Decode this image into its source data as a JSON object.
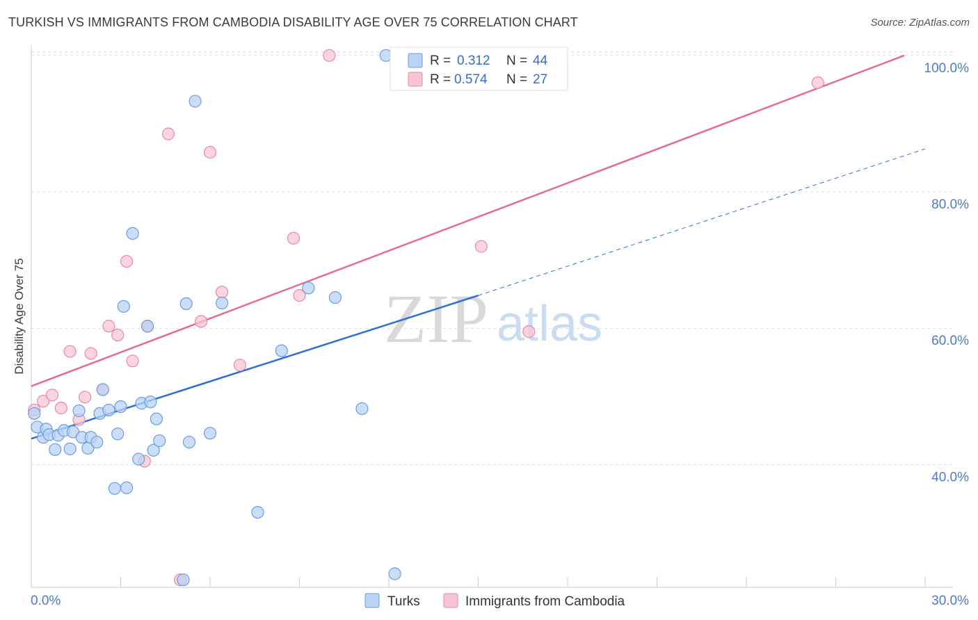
{
  "header": {
    "title": "TURKISH VS IMMIGRANTS FROM CAMBODIA DISABILITY AGE OVER 75 CORRELATION CHART",
    "source": "Source: ZipAtlas.com"
  },
  "watermark": {
    "zip": "ZIP",
    "atlas": "atlas"
  },
  "legend": {
    "r_label": "R =",
    "n_label": "N =",
    "rows": [
      {
        "r": "0.312",
        "n": "44"
      },
      {
        "r": "0.574",
        "n": "27"
      }
    ]
  },
  "colors": {
    "turks_fill": "#b8d3f4",
    "turks_stroke": "#6c9be0",
    "turks_line": "#2e6fd1",
    "cambodia_fill": "#f8c5d4",
    "cambodia_stroke": "#e58aa8",
    "cambodia_line": "#e36b94",
    "grid": "#dcdcdc",
    "tick_label": "#4a7cc9"
  },
  "chart_data": {
    "type": "scatter",
    "title": "TURKISH VS IMMIGRANTS FROM CAMBODIA DISABILITY AGE OVER 75 CORRELATION CHART",
    "xlabel": "",
    "ylabel": "Disability Age Over 75",
    "xlim": [
      0,
      30
    ],
    "ylim": [
      22,
      101
    ],
    "x_tick_labels": [
      "0.0%",
      "30.0%"
    ],
    "y_ticks": [
      40,
      60,
      80,
      100
    ],
    "y_tick_labels": [
      "40.0%",
      "60.0%",
      "80.0%",
      "100.0%"
    ],
    "grid": true,
    "legend_position": "top-center",
    "series": [
      {
        "name": "Turks",
        "points": [
          [
            0.1,
            47.5
          ],
          [
            0.2,
            45.5
          ],
          [
            0.4,
            44.0
          ],
          [
            0.5,
            45.2
          ],
          [
            0.6,
            44.4
          ],
          [
            0.8,
            42.2
          ],
          [
            0.9,
            44.3
          ],
          [
            1.1,
            45.0
          ],
          [
            1.3,
            42.3
          ],
          [
            1.4,
            44.8
          ],
          [
            1.6,
            47.9
          ],
          [
            1.7,
            44.0
          ],
          [
            1.9,
            42.4
          ],
          [
            2.0,
            44.0
          ],
          [
            2.2,
            43.3
          ],
          [
            2.3,
            47.5
          ],
          [
            2.4,
            51.0
          ],
          [
            2.6,
            48.0
          ],
          [
            2.8,
            36.5
          ],
          [
            2.9,
            44.5
          ],
          [
            3.0,
            48.5
          ],
          [
            3.1,
            63.2
          ],
          [
            3.2,
            36.6
          ],
          [
            3.4,
            73.9
          ],
          [
            3.6,
            40.8
          ],
          [
            3.7,
            49.0
          ],
          [
            3.9,
            60.3
          ],
          [
            4.0,
            49.2
          ],
          [
            4.1,
            42.1
          ],
          [
            4.2,
            46.7
          ],
          [
            4.3,
            43.5
          ],
          [
            5.1,
            23.1
          ],
          [
            5.2,
            63.6
          ],
          [
            5.3,
            43.3
          ],
          [
            5.5,
            93.3
          ],
          [
            6.0,
            44.6
          ],
          [
            6.4,
            63.7
          ],
          [
            7.6,
            33.0
          ],
          [
            8.4,
            56.7
          ],
          [
            9.3,
            65.9
          ],
          [
            10.2,
            64.5
          ],
          [
            11.1,
            48.2
          ],
          [
            11.9,
            100.0
          ],
          [
            12.2,
            24.0
          ]
        ],
        "trend": {
          "x": [
            0,
            15
          ],
          "y": [
            43.8,
            64.8
          ],
          "dashed_extension": {
            "x": [
              15,
              30
            ],
            "y": [
              64.8,
              86.3
            ]
          }
        }
      },
      {
        "name": "Immigrants from Cambodia",
        "points": [
          [
            0.1,
            48.0
          ],
          [
            0.4,
            49.3
          ],
          [
            0.7,
            50.2
          ],
          [
            1.0,
            48.3
          ],
          [
            1.3,
            56.6
          ],
          [
            1.6,
            46.6
          ],
          [
            1.8,
            49.9
          ],
          [
            2.0,
            56.3
          ],
          [
            2.4,
            51.0
          ],
          [
            2.6,
            60.3
          ],
          [
            2.9,
            59.0
          ],
          [
            3.2,
            69.8
          ],
          [
            3.4,
            55.2
          ],
          [
            3.8,
            40.5
          ],
          [
            3.9,
            60.3
          ],
          [
            4.6,
            88.5
          ],
          [
            5.0,
            23.1
          ],
          [
            5.7,
            61.0
          ],
          [
            6.0,
            85.8
          ],
          [
            6.4,
            65.3
          ],
          [
            7.0,
            54.6
          ],
          [
            8.8,
            73.2
          ],
          [
            9.0,
            64.8
          ],
          [
            10.0,
            100.0
          ],
          [
            15.1,
            72.0
          ],
          [
            16.7,
            59.5
          ],
          [
            26.4,
            96.0
          ]
        ],
        "trend": {
          "x": [
            0,
            29.3
          ],
          "y": [
            51.5,
            100.0
          ]
        }
      }
    ]
  }
}
